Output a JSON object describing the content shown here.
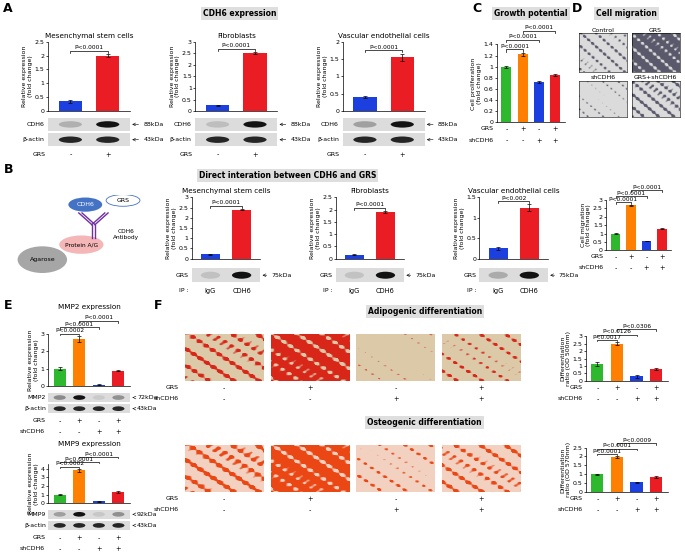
{
  "panels": [
    {
      "letter": "A",
      "title": "CDH6 expression"
    },
    {
      "letter": "B",
      "title": "Direct interation between CDH6 and GRS",
      "diagram": {
        "receptor": "CDH6",
        "ligand": "GRS",
        "bead": "Agarose",
        "linker": "Protein A/G",
        "antibody": "CDH6\nAntibody"
      }
    },
    {
      "letter": "C",
      "title": "Growth potential"
    },
    {
      "letter": "D",
      "title": "Cell migration",
      "images": [
        "Control",
        "GRS",
        "shCDH6",
        "GRS+shCDH6"
      ]
    },
    {
      "letter": "E"
    },
    {
      "letter": "F"
    }
  ],
  "chart_data": [
    {
      "panel": "A",
      "type": "bar",
      "title": "Mesenchymal stem cells",
      "y_label": "Relative expression\n(fold change)",
      "conditions": [
        {
          "name": "GRS",
          "values": [
            "-",
            "+"
          ]
        }
      ],
      "values": [
        0.35,
        2.0
      ],
      "errors": [
        0.04,
        0.05
      ],
      "colors": [
        "#1c3fe0",
        "#ea1c24"
      ],
      "ylim": [
        0,
        2.5
      ],
      "yticks": [
        0,
        0.5,
        1,
        1.5,
        2,
        2.5
      ],
      "tick_labels": "y",
      "annotations": [
        {
          "text": "P<0.0001",
          "between": [
            0,
            1
          ]
        }
      ],
      "blot": [
        {
          "name": "CDH6",
          "size": "88kDa"
        },
        {
          "name": "β-actin",
          "size": "43kDa"
        }
      ]
    },
    {
      "panel": "A",
      "type": "bar",
      "title": "Fibroblasts",
      "y_label": "Relative expression\n(fold change)",
      "conditions": [
        {
          "name": "GRS",
          "values": [
            "-",
            "+"
          ]
        }
      ],
      "values": [
        0.25,
        2.5
      ],
      "errors": [
        0.03,
        0.05
      ],
      "colors": [
        "#1c3fe0",
        "#ea1c24"
      ],
      "ylim": [
        0,
        3
      ],
      "yticks": [
        0,
        0.5,
        1,
        1.5,
        2,
        2.5,
        3
      ],
      "tick_labels": "y",
      "annotations": [
        {
          "text": "P<0.0001",
          "between": [
            0,
            1
          ]
        }
      ],
      "blot": [
        {
          "name": "CDH6",
          "size": "88kDa"
        },
        {
          "name": "β-actin",
          "size": "43kDa"
        }
      ]
    },
    {
      "panel": "A",
      "type": "bar",
      "title": "Vascular endothelial cells",
      "y_label": "Relative expression\n(fold change)",
      "conditions": [
        {
          "name": "GRS",
          "values": [
            "-",
            "+"
          ]
        }
      ],
      "values": [
        0.4,
        1.55
      ],
      "errors": [
        0.03,
        0.1
      ],
      "colors": [
        "#1c3fe0",
        "#ea1c24"
      ],
      "ylim": [
        0,
        2
      ],
      "yticks": [
        0,
        0.5,
        1,
        1.5,
        2
      ],
      "tick_labels": "y",
      "annotations": [
        {
          "text": "P<0.0001",
          "between": [
            0,
            1
          ]
        }
      ],
      "blot": [
        {
          "name": "CDH6",
          "size": "88kDa"
        },
        {
          "name": "β-actin",
          "size": "43kDa"
        }
      ]
    },
    {
      "panel": "B",
      "type": "bar",
      "title": "Mesenchymal stem cells",
      "y_label": "Relative expression\n(fold change)",
      "conditions": [
        {
          "name": "IP :",
          "values": [
            "IgG",
            "CDH6"
          ]
        }
      ],
      "values": [
        0.2,
        2.4
      ],
      "errors": [
        0.02,
        0.04
      ],
      "colors": [
        "#1c3fe0",
        "#ea1c24"
      ],
      "ylim": [
        0,
        3
      ],
      "yticks": [
        0,
        0.5,
        1,
        1.5,
        2,
        2.5,
        3
      ],
      "tick_labels": "y",
      "annotations": [
        {
          "text": "P<0.0001",
          "between": [
            0,
            1
          ]
        }
      ],
      "blot": [
        {
          "name": "GRS",
          "size": "75kDa"
        }
      ]
    },
    {
      "panel": "B",
      "type": "bar",
      "title": "Fibroblasts",
      "y_label": "Relative expression\n(fold change)",
      "conditions": [
        {
          "name": "IP :",
          "values": [
            "IgG",
            "CDH6"
          ]
        }
      ],
      "values": [
        0.15,
        1.9
      ],
      "errors": [
        0.02,
        0.05
      ],
      "colors": [
        "#1c3fe0",
        "#ea1c24"
      ],
      "ylim": [
        0,
        2.5
      ],
      "yticks": [
        0,
        0.5,
        1,
        1.5,
        2,
        2.5
      ],
      "tick_labels": "y",
      "annotations": [
        {
          "text": "P<0.0001",
          "between": [
            0,
            1
          ]
        }
      ],
      "blot": [
        {
          "name": "GRS",
          "size": "75kDa"
        }
      ]
    },
    {
      "panel": "B",
      "type": "bar",
      "title": "Vascular endothelial cells",
      "y_label": "Relative expression\n(fold change)",
      "conditions": [
        {
          "name": "IP :",
          "values": [
            "IgG",
            "CDH6"
          ]
        }
      ],
      "values": [
        0.25,
        1.25
      ],
      "errors": [
        0.03,
        0.08
      ],
      "colors": [
        "#1c3fe0",
        "#ea1c24"
      ],
      "ylim": [
        0,
        1.5
      ],
      "yticks": [
        0,
        0.5,
        1,
        1.5
      ],
      "tick_labels": "y",
      "annotations": [
        {
          "text": "P<0.002",
          "between": [
            0,
            1
          ]
        }
      ],
      "blot": [
        {
          "name": "GRS",
          "size": "75kDa"
        }
      ]
    },
    {
      "panel": "C",
      "type": "bar",
      "y_label": "Cell proliferation\n(fold change)",
      "conditions": [
        {
          "name": "GRS",
          "values": [
            "-",
            "+",
            "-",
            "+"
          ]
        },
        {
          "name": "shCDH6",
          "values": [
            "-",
            "-",
            "+",
            "+"
          ]
        }
      ],
      "values": [
        1.0,
        1.22,
        0.72,
        0.85
      ],
      "errors": [
        0.02,
        0.02,
        0.02,
        0.02
      ],
      "colors": [
        "#2eb82e",
        "#ff8000",
        "#1c3fe0",
        "#ea1c24"
      ],
      "ylim": [
        0,
        1.4
      ],
      "yticks": [
        0,
        0.2,
        0.4,
        0.6,
        0.8,
        1,
        1.2,
        1.4
      ],
      "tick_labels": "y",
      "annotations": [
        {
          "text": "P<0.0001",
          "between": [
            0,
            1
          ]
        },
        {
          "text": "P<0.0001",
          "between": [
            0,
            2
          ]
        },
        {
          "text": "P<0.0001",
          "between": [
            1,
            3
          ]
        }
      ]
    },
    {
      "panel": "D",
      "type": "bar",
      "y_label": "Cell migration\n(fold change)",
      "conditions": [
        {
          "name": "GRS",
          "values": [
            "-",
            "+",
            "-",
            "+"
          ]
        },
        {
          "name": "shCDH6",
          "values": [
            "-",
            "-",
            "+",
            "+"
          ]
        }
      ],
      "values": [
        1.0,
        2.7,
        0.55,
        1.3
      ],
      "errors": [
        0.02,
        0.03,
        0.02,
        0.04
      ],
      "colors": [
        "#2eb82e",
        "#ff8000",
        "#1c3fe0",
        "#ea1c24"
      ],
      "ylim": [
        0,
        3
      ],
      "yticks": [
        0,
        0.5,
        1,
        1.5,
        2,
        2.5,
        3
      ],
      "tick_labels": "y",
      "annotations": [
        {
          "text": "P<0.0001",
          "between": [
            0,
            1
          ]
        },
        {
          "text": "P<0.0001",
          "between": [
            0,
            2
          ]
        },
        {
          "text": "P<0.0001",
          "between": [
            1,
            3
          ]
        }
      ]
    },
    {
      "panel": "E",
      "type": "bar",
      "title": "MMP2 expression",
      "y_label": "Relative expression\n(fold change)",
      "conditions": [
        {
          "name": "GRS",
          "values": [
            "-",
            "+",
            "-",
            "+"
          ]
        },
        {
          "name": "shCDH6",
          "values": [
            "-",
            "-",
            "+",
            "+"
          ]
        }
      ],
      "values": [
        1.0,
        2.7,
        0.1,
        0.9
      ],
      "errors": [
        0.08,
        0.15,
        0.02,
        0.05
      ],
      "colors": [
        "#2eb82e",
        "#ff8000",
        "#1c3fe0",
        "#ea1c24"
      ],
      "ylim": [
        0,
        3
      ],
      "yticks": [
        0,
        1,
        2,
        3
      ],
      "tick_labels": "y",
      "annotations": [
        {
          "text": "P<0.0002",
          "between": [
            0,
            1
          ]
        },
        {
          "text": "P<0.0001",
          "between": [
            0,
            2
          ]
        },
        {
          "text": "P<0.0001",
          "between": [
            1,
            3
          ]
        }
      ],
      "blot": [
        {
          "name": "MMP2",
          "size": "72kDa"
        },
        {
          "name": "β-actin",
          "size": "43kDa"
        }
      ]
    },
    {
      "panel": "E",
      "type": "bar",
      "title": "MMP9 expression",
      "y_label": "Relative expression\n(fold change)",
      "conditions": [
        {
          "name": "GRS",
          "values": [
            "-",
            "+",
            "-",
            "+"
          ]
        },
        {
          "name": "shCDH6",
          "values": [
            "-",
            "-",
            "+",
            "+"
          ]
        }
      ],
      "values": [
        1.0,
        3.8,
        0.2,
        1.3
      ],
      "errors": [
        0.05,
        0.2,
        0.03,
        0.08
      ],
      "colors": [
        "#2eb82e",
        "#ff8000",
        "#1c3fe0",
        "#ea1c24"
      ],
      "ylim": [
        0,
        4.5
      ],
      "yticks": [
        0,
        1,
        2,
        3,
        4
      ],
      "tick_labels": "y",
      "annotations": [
        {
          "text": "P<0.0002",
          "between": [
            0,
            1
          ]
        },
        {
          "text": "P<0.0001",
          "between": [
            0,
            2
          ]
        },
        {
          "text": "P<0.0001",
          "between": [
            1,
            3
          ]
        }
      ],
      "blot": [
        {
          "name": "MMP9",
          "size": "92kDa"
        },
        {
          "name": "β-actin",
          "size": "43kDa"
        }
      ]
    },
    {
      "panel": "F",
      "type": "bar",
      "title": "Adipogenic differentiation",
      "y_label": "Differentiation\nratio (OD 500nm)",
      "conditions": [
        {
          "name": "GRS",
          "values": [
            "-",
            "+",
            "-",
            "+"
          ]
        },
        {
          "name": "shCDH6",
          "values": [
            "-",
            "-",
            "+",
            "+"
          ]
        }
      ],
      "values": [
        1.15,
        2.5,
        0.3,
        0.8
      ],
      "errors": [
        0.12,
        0.1,
        0.1,
        0.08
      ],
      "colors": [
        "#2eb82e",
        "#ff8000",
        "#1c3fe0",
        "#ea1c24"
      ],
      "ylim": [
        0,
        3
      ],
      "yticks": [
        0,
        0.5,
        1,
        1.5,
        2,
        2.5,
        3
      ],
      "tick_labels": "y",
      "annotations": [
        {
          "text": "P<0.0017",
          "between": [
            0,
            1
          ]
        },
        {
          "text": "P<0.0126",
          "between": [
            0,
            2
          ]
        },
        {
          "text": "P<0.0306",
          "between": [
            1,
            3
          ]
        }
      ]
    },
    {
      "panel": "F",
      "type": "bar",
      "title": "Osteogenic differentiation",
      "y_label": "Differentiation\nratio (OD 570nm)",
      "conditions": [
        {
          "name": "GRS",
          "values": [
            "-",
            "+",
            "-",
            "+"
          ]
        },
        {
          "name": "shCDH6",
          "values": [
            "-",
            "-",
            "+",
            "+"
          ]
        }
      ],
      "values": [
        1.0,
        1.95,
        0.55,
        0.85
      ],
      "errors": [
        0.04,
        0.06,
        0.03,
        0.04
      ],
      "colors": [
        "#2eb82e",
        "#ff8000",
        "#1c3fe0",
        "#ea1c24"
      ],
      "ylim": [
        0,
        2.5
      ],
      "yticks": [
        0,
        0.5,
        1,
        1.5,
        2,
        2.5
      ],
      "tick_labels": "y",
      "annotations": [
        {
          "text": "P<0.0001",
          "between": [
            0,
            1
          ]
        },
        {
          "text": "P<0.0001",
          "between": [
            0,
            2
          ]
        },
        {
          "text": "P<0.0009",
          "between": [
            1,
            3
          ]
        }
      ]
    }
  ]
}
